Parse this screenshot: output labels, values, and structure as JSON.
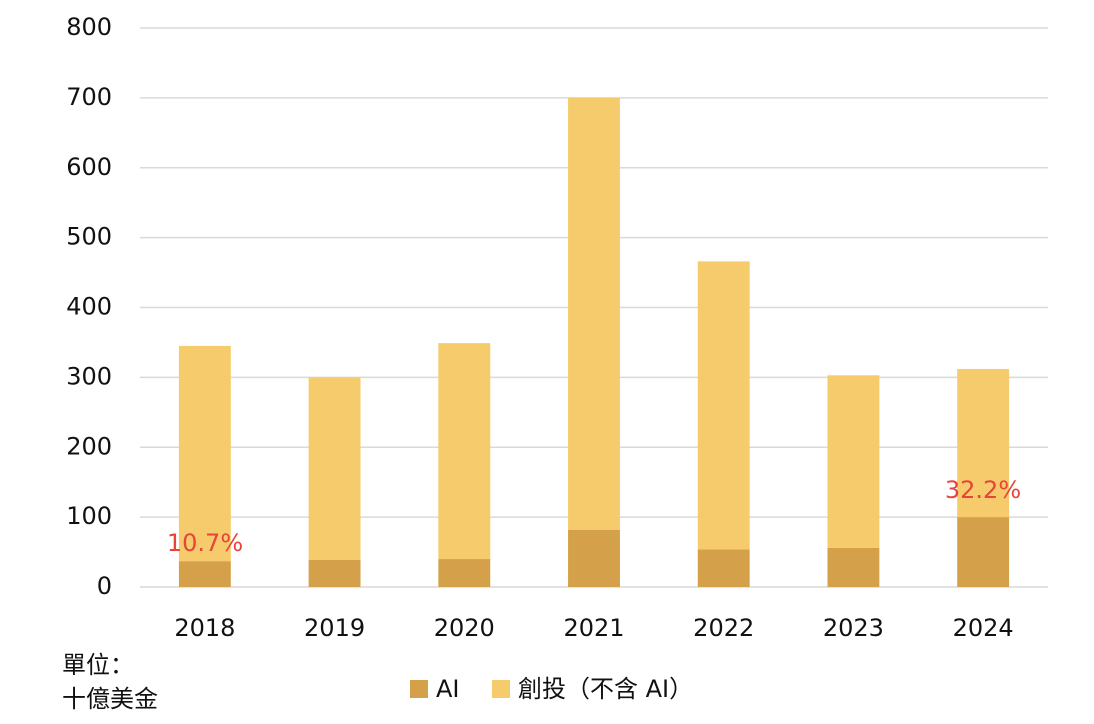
{
  "chart_data": {
    "type": "stacked_bar",
    "categories": [
      "2018",
      "2019",
      "2020",
      "2021",
      "2022",
      "2023",
      "2024"
    ],
    "series": [
      {
        "name": "AI",
        "color": "#d4a04a",
        "values": [
          37,
          39,
          40,
          82,
          54,
          56,
          100
        ]
      },
      {
        "name": "創投（不含 AI）",
        "color": "#f5cb6c",
        "values": [
          308,
          261,
          309,
          618,
          412,
          247,
          212
        ]
      }
    ],
    "ylim": [
      0,
      800
    ],
    "yticks": [
      0,
      100,
      200,
      300,
      400,
      500,
      600,
      700,
      800
    ],
    "grid": true,
    "annotations": [
      "10.7%",
      "32.2%"
    ],
    "unit_label": [
      "單位：",
      "十億美金"
    ],
    "legend": "bottom"
  }
}
